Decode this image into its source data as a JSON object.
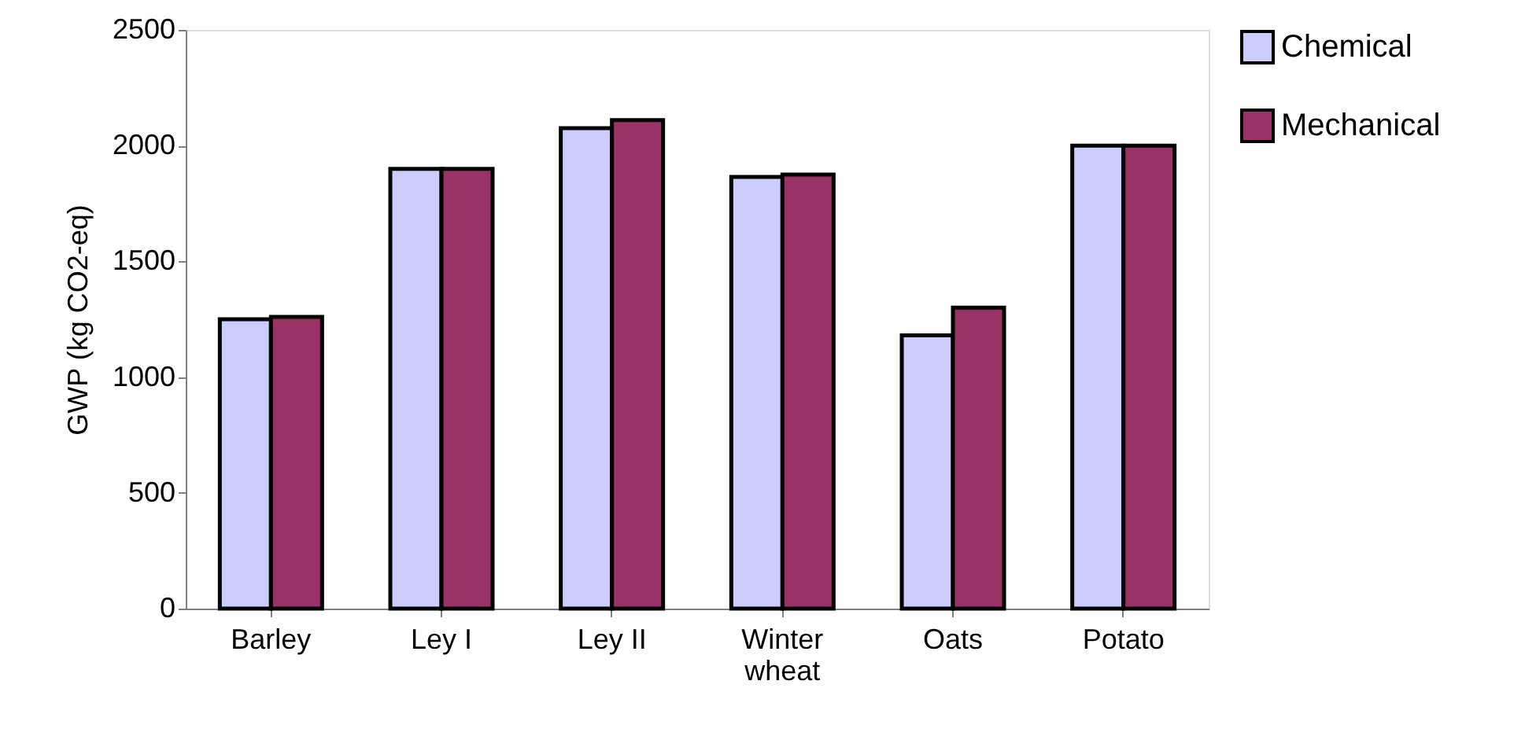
{
  "chart_data": {
    "type": "bar",
    "ylabel": "GWP (kg CO2-eq)",
    "categories": [
      "Barley",
      "Ley I",
      "Ley II",
      "Winter wheat",
      "Oats",
      "Potato"
    ],
    "series": [
      {
        "name": "Chemical",
        "color": "#ccccff",
        "values": [
          1250,
          1900,
          2075,
          1865,
          1180,
          2000
        ]
      },
      {
        "name": "Mechanical",
        "color": "#993366",
        "values": [
          1260,
          1900,
          2110,
          1875,
          1300,
          2000
        ]
      }
    ],
    "ylim": [
      0,
      2500
    ],
    "yticks": [
      0,
      500,
      1000,
      1500,
      2000,
      2500
    ],
    "grid": false,
    "legend": "right"
  }
}
